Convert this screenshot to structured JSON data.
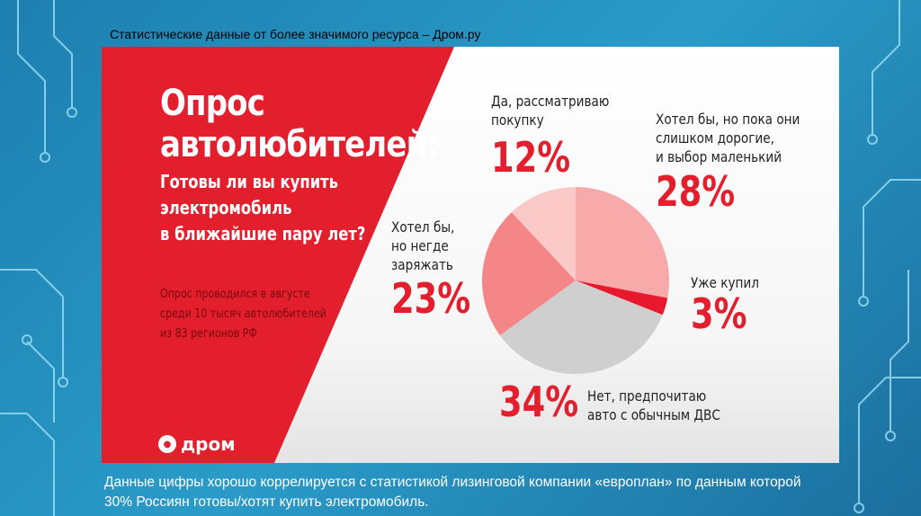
{
  "header": "Статистические данные от более значимого ресурса – Дром.ру",
  "slide": {
    "title_line1": "Опрос",
    "title_line2": "автолюбителей:",
    "question_lines": [
      "Готовы ли вы купить",
      "электромобиль",
      "в ближайшие пару лет?"
    ],
    "note_lines": [
      "Опрос проводился в августе",
      "среди 10 тысяч автолюбителей",
      "из 83 регионов РФ"
    ],
    "logo_text": "дром",
    "colors": {
      "red": "#e31e2d",
      "white": "#ffffff"
    }
  },
  "chart_data": {
    "type": "pie",
    "title": "Опрос автолюбителей: Готовы ли вы купить электромобиль в ближайшие пару лет?",
    "slices": [
      {
        "label_lines": [
          "Хотел бы, но пока они",
          "слишком дорогие,",
          "и выбор маленький"
        ],
        "value": 28,
        "display": "28%",
        "color": "#f8a9a9"
      },
      {
        "label_lines": [
          "Уже купил"
        ],
        "value": 3,
        "display": "3%",
        "color": "#e8192c"
      },
      {
        "label_lines": [
          "Нет, предпочитаю",
          "авто с обычным ДВС"
        ],
        "value": 34,
        "display": "34%",
        "color": "#cfcfcf"
      },
      {
        "label_lines": [
          "Хотел бы,",
          "но негде",
          "заряжать"
        ],
        "value": 23,
        "display": "23%",
        "color": "#f58688"
      },
      {
        "label_lines": [
          "Да, рассматриваю",
          "покупку"
        ],
        "value": 12,
        "display": "12%",
        "color": "#fcc9c9"
      }
    ],
    "start": "12 o'clock, clockwise"
  },
  "footer": "Данные цифры хорошо коррелируется с статистикой лизинговой компании «европлан» по данным которой 30% Россиян готовы/хотят купить электромобиль."
}
